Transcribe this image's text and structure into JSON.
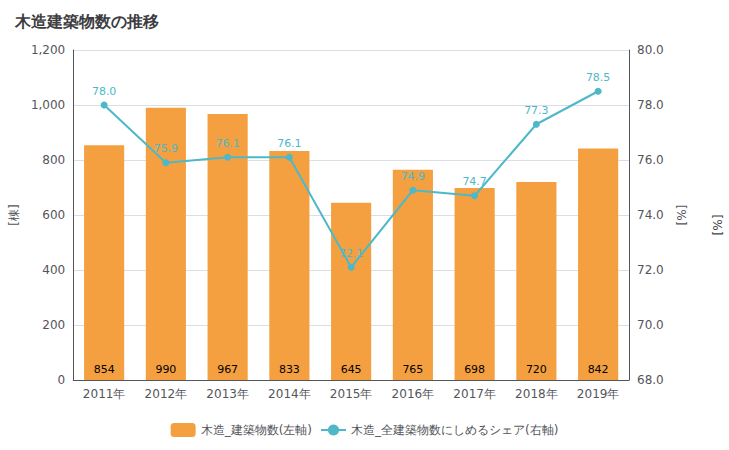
{
  "chart_data": {
    "type": "bar",
    "title": "木造建築物数の推移",
    "categories": [
      "2011年",
      "2012年",
      "2013年",
      "2014年",
      "2015年",
      "2016年",
      "2017年",
      "2018年",
      "2019年"
    ],
    "series": [
      {
        "name": "木造_建築物数(左軸)",
        "type": "bar",
        "color": "#f5a040",
        "values": [
          854,
          990,
          967,
          833,
          645,
          765,
          698,
          720,
          842
        ]
      },
      {
        "name": "木造_全建築物数にしめるシェア(右軸)",
        "type": "line",
        "axis": "y2",
        "color": "#4db8c8",
        "marker": "circle",
        "values": [
          78.0,
          75.9,
          76.1,
          76.1,
          72.1,
          74.9,
          74.7,
          77.3,
          78.5
        ],
        "value_labels": [
          "78.0",
          "75.9",
          "76.1",
          "76.1",
          "72.1",
          "74.9",
          "74.7",
          "77.3",
          "78.5"
        ]
      }
    ],
    "ylabel": "[棟]",
    "y2label": "[%]",
    "annotations": [
      "[%]"
    ],
    "ylim": [
      0,
      1200
    ],
    "yticks": [
      0,
      200,
      400,
      600,
      800,
      {
        "value": 1000,
        "label": "1,000"
      },
      {
        "value": 1200,
        "label": "1,200"
      }
    ],
    "y2lim": [
      68.0,
      80.0
    ],
    "y2ticks": [
      {
        "value": 68,
        "label": "68.0"
      },
      {
        "value": 70,
        "label": "70.0"
      },
      {
        "value": 72,
        "label": "72.0"
      },
      {
        "value": 74,
        "label": "74.0"
      },
      {
        "value": 76,
        "label": "76.0"
      },
      {
        "value": 78,
        "label": "78.0"
      },
      {
        "value": 80,
        "label": "80.0"
      }
    ],
    "grid": true,
    "legend": "bottom",
    "data_labels": true
  }
}
